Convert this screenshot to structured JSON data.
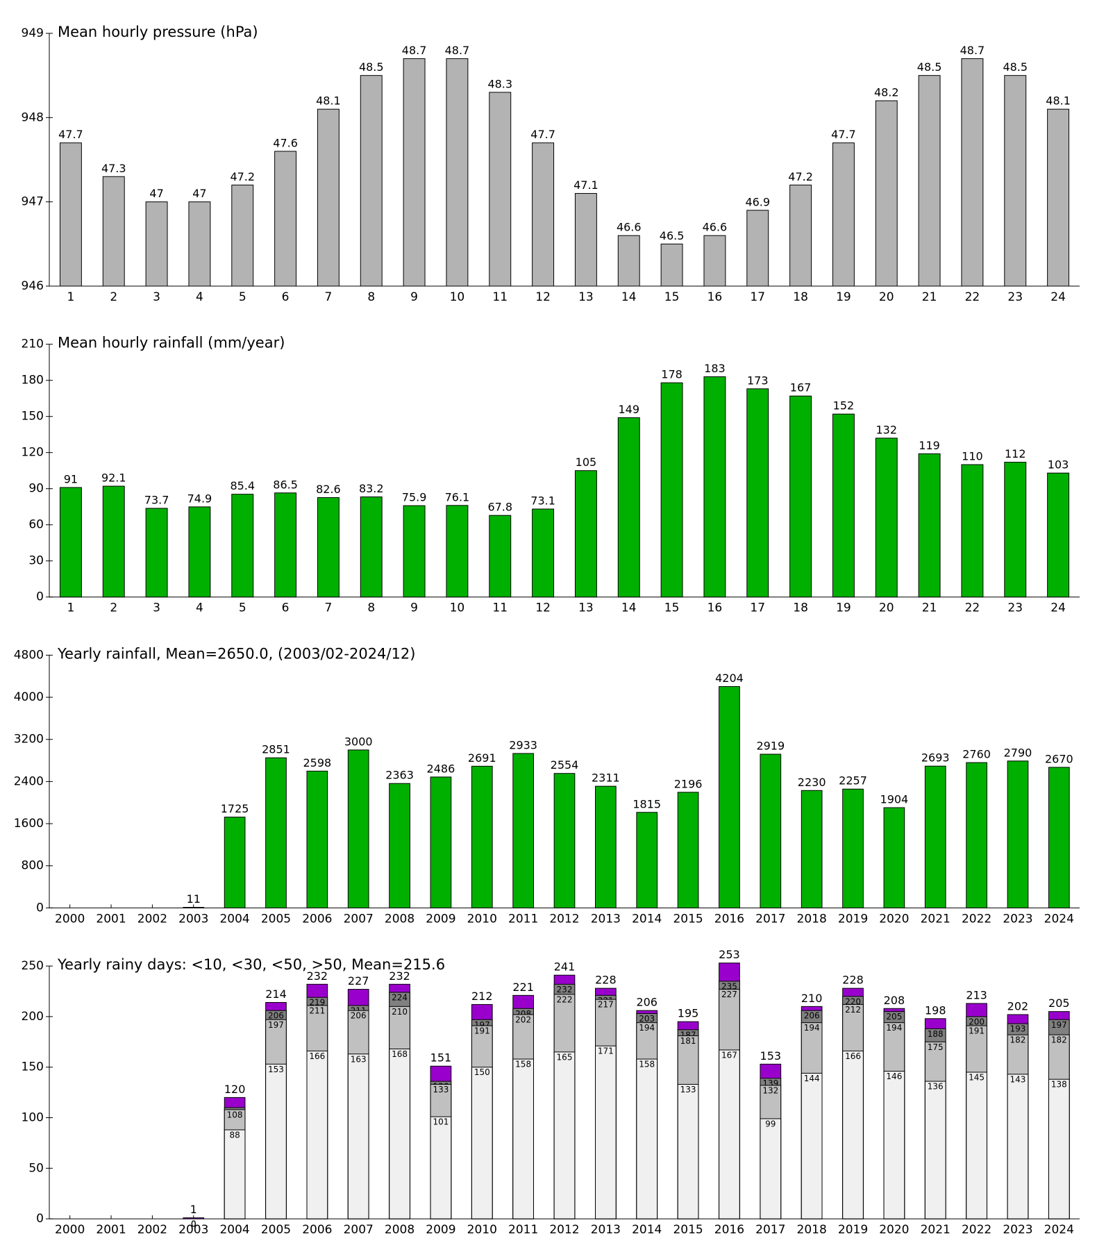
{
  "chart_data": [
    {
      "type": "bar",
      "title": "Mean hourly pressure (hPa)",
      "categories": [
        "1",
        "2",
        "3",
        "4",
        "5",
        "6",
        "7",
        "8",
        "9",
        "10",
        "11",
        "12",
        "13",
        "14",
        "15",
        "16",
        "17",
        "18",
        "19",
        "20",
        "21",
        "22",
        "23",
        "24"
      ],
      "values": [
        947.7,
        947.3,
        947,
        947,
        947.2,
        947.6,
        948.1,
        948.5,
        948.7,
        948.7,
        948.3,
        947.7,
        947.1,
        946.6,
        946.5,
        946.6,
        946.9,
        947.2,
        947.7,
        948.2,
        948.5,
        948.7,
        948.5,
        948.1
      ],
      "value_labels": [
        "47.7",
        "47.3",
        "47",
        "47",
        "47.2",
        "47.6",
        "48.1",
        "48.5",
        "48.7",
        "48.7",
        "48.3",
        "47.7",
        "47.1",
        "46.6",
        "46.5",
        "46.6",
        "46.9",
        "47.2",
        "47.7",
        "48.2",
        "48.5",
        "48.7",
        "48.5",
        "48.1"
      ],
      "color": "#b3b3b3",
      "ylim": [
        946,
        949
      ],
      "yticks": [
        946,
        947,
        948,
        949
      ]
    },
    {
      "type": "bar",
      "title": "Mean hourly rainfall (mm/year)",
      "categories": [
        "1",
        "2",
        "3",
        "4",
        "5",
        "6",
        "7",
        "8",
        "9",
        "10",
        "11",
        "12",
        "13",
        "14",
        "15",
        "16",
        "17",
        "18",
        "19",
        "20",
        "21",
        "22",
        "23",
        "24"
      ],
      "values": [
        91,
        92.1,
        73.7,
        74.9,
        85.4,
        86.5,
        82.6,
        83.2,
        75.9,
        76.1,
        67.8,
        73.1,
        105,
        149,
        178,
        183,
        173,
        167,
        152,
        132,
        119,
        110,
        112,
        103
      ],
      "color": "#00b000",
      "ylim": [
        0,
        210
      ],
      "yticks": [
        0,
        30,
        60,
        90,
        120,
        150,
        180,
        210
      ]
    },
    {
      "type": "bar",
      "title": "Yearly rainfall, Mean=2650.0, (2003/02-2024/12)",
      "categories": [
        "2000",
        "2001",
        "2002",
        "2003",
        "2004",
        "2005",
        "2006",
        "2007",
        "2008",
        "2009",
        "2010",
        "2011",
        "2012",
        "2013",
        "2014",
        "2015",
        "2016",
        "2017",
        "2018",
        "2019",
        "2020",
        "2021",
        "2022",
        "2023",
        "2024"
      ],
      "values": [
        null,
        null,
        null,
        11,
        1725,
        2851,
        2598,
        3000,
        2363,
        2486,
        2691,
        2933,
        2554,
        2311,
        1815,
        2196,
        4204,
        2919,
        2230,
        2257,
        1904,
        2693,
        2760,
        2790,
        2670
      ],
      "color": "#00b000",
      "ylim": [
        0,
        4800
      ],
      "yticks": [
        0,
        800,
        1600,
        2400,
        3200,
        4000,
        4800
      ]
    },
    {
      "type": "overlay_bar",
      "title": "Yearly rainy days: <10, <30, <50, >50, Mean=215.6",
      "categories": [
        "2000",
        "2001",
        "2002",
        "2003",
        "2004",
        "2005",
        "2006",
        "2007",
        "2008",
        "2009",
        "2010",
        "2011",
        "2012",
        "2013",
        "2014",
        "2015",
        "2016",
        "2017",
        "2018",
        "2019",
        "2020",
        "2021",
        "2022",
        "2023",
        "2024"
      ],
      "series": [
        {
          "color": "#9900cc",
          "values": [
            null,
            null,
            null,
            1,
            120,
            214,
            232,
            227,
            232,
            151,
            212,
            221,
            241,
            228,
            206,
            195,
            253,
            153,
            210,
            228,
            208,
            198,
            213,
            202,
            205
          ]
        },
        {
          "color": "#808080",
          "values": [
            null,
            null,
            null,
            0,
            110,
            206,
            219,
            211,
            224,
            136,
            197,
            208,
            232,
            221,
            203,
            187,
            235,
            139,
            206,
            220,
            205,
            188,
            200,
            193,
            197
          ]
        },
        {
          "color": "#c0c0c0",
          "values": [
            null,
            null,
            null,
            0,
            108,
            197,
            211,
            206,
            210,
            133,
            191,
            202,
            222,
            217,
            194,
            181,
            227,
            132,
            194,
            212,
            194,
            175,
            191,
            182,
            182
          ]
        },
        {
          "color": "#f0f0f0",
          "values": [
            null,
            null,
            null,
            0,
            88,
            153,
            166,
            163,
            168,
            101,
            150,
            158,
            165,
            171,
            158,
            133,
            167,
            99,
            144,
            166,
            146,
            136,
            145,
            143,
            138
          ]
        }
      ],
      "ylim": [
        0,
        250
      ],
      "yticks": [
        0,
        50,
        100,
        150,
        200,
        250
      ]
    }
  ]
}
